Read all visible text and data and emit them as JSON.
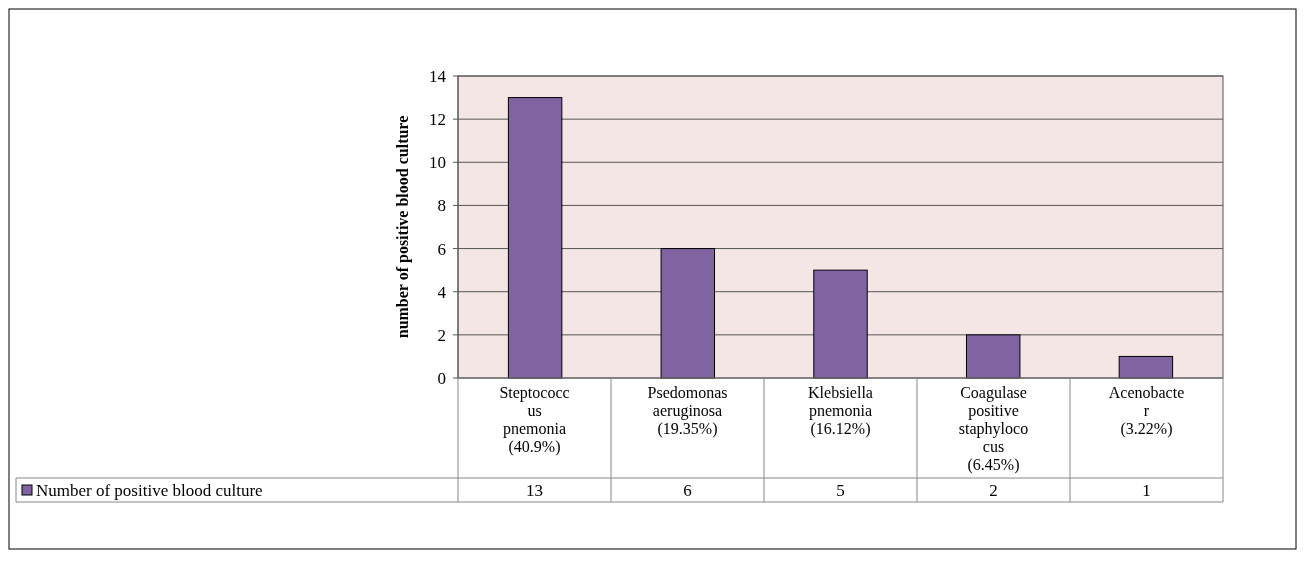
{
  "chart_data": {
    "type": "bar",
    "ylabel": "number of positive blood culture",
    "categories": [
      "Steptococcus pnemonia (40.9%)",
      "Psedomonas aeruginosa (19.35%)",
      "Klebsiella pnemonia (16.12%)",
      "Coagulase positive staphylococus (6.45%)",
      "Acenobacter (3.22%)"
    ],
    "series": [
      {
        "name": "Number of positive blood culture",
        "color": "#8064a2",
        "values": [
          13,
          6,
          5,
          2,
          1
        ]
      }
    ],
    "ylim": [
      0,
      14
    ],
    "yticks": [
      0,
      2,
      4,
      6,
      8,
      10,
      12,
      14
    ],
    "grid": "y",
    "legend": "bottom",
    "data_labels": true
  }
}
